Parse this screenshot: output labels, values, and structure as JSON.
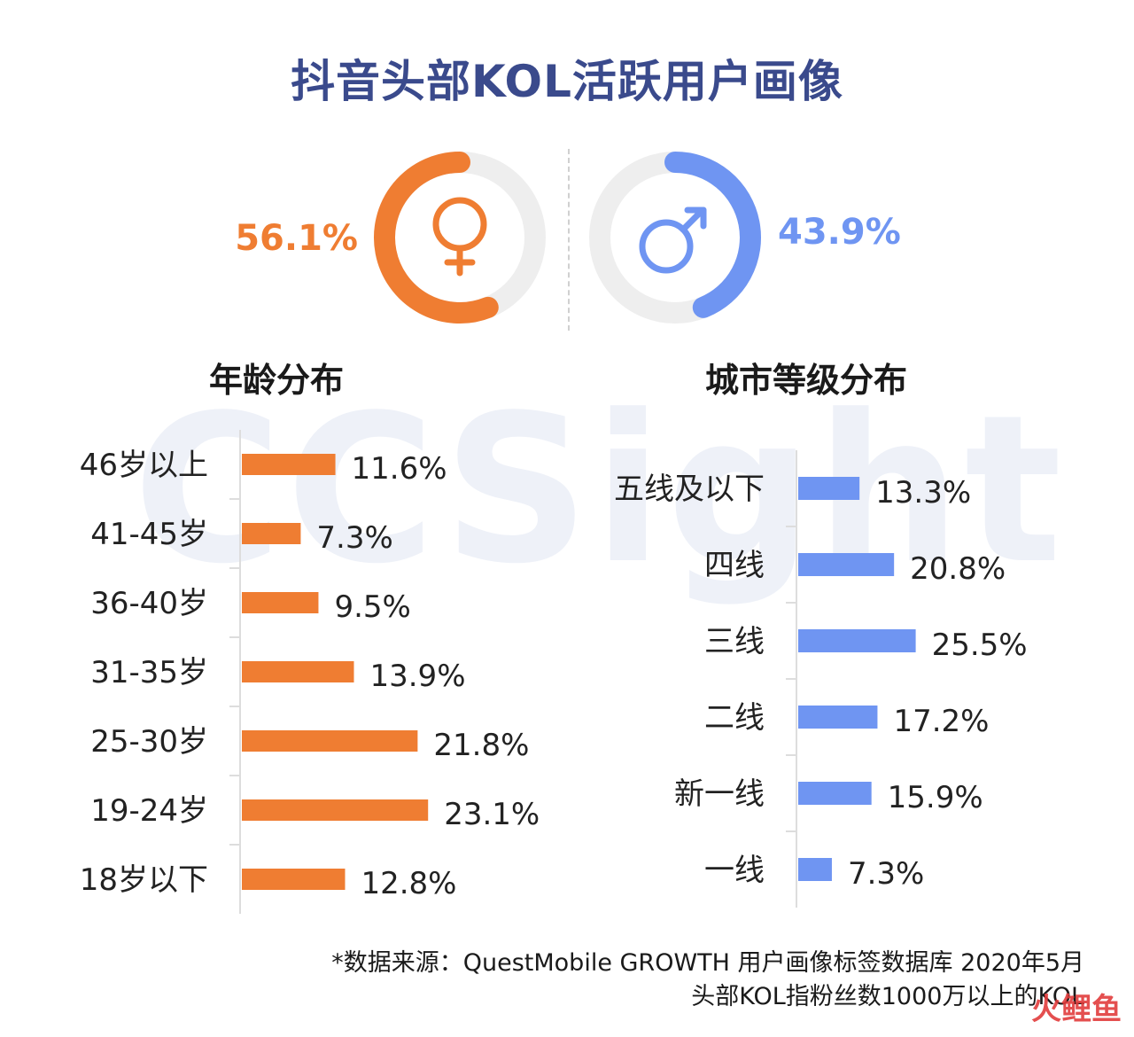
{
  "title": "抖音头部KOL活跃用户画像",
  "gender": {
    "female": {
      "percent": 56.1,
      "label": "56.1%",
      "color": "#ef7d32",
      "icon": "female-symbol-icon"
    },
    "male": {
      "percent": 43.9,
      "label": "43.9%",
      "color": "#6f95f2",
      "icon": "male-symbol-icon"
    },
    "track_color": "#eeeeee"
  },
  "watermark": "CCSight",
  "chart_data": [
    {
      "type": "bar",
      "orientation": "horizontal",
      "title": "年龄分布",
      "color": "#ef7d32",
      "categories": [
        "46岁以上",
        "41-45岁",
        "36-40岁",
        "31-35岁",
        "25-30岁",
        "19-24岁",
        "18岁以下"
      ],
      "values": [
        11.6,
        7.3,
        9.5,
        13.9,
        21.8,
        23.1,
        12.8
      ],
      "value_labels": [
        "11.6%",
        "7.3%",
        "9.5%",
        "13.9%",
        "21.8%",
        "23.1%",
        "12.8%"
      ],
      "unit": "%",
      "grid": false
    },
    {
      "type": "bar",
      "orientation": "horizontal",
      "title": "城市等级分布",
      "color": "#6f95f2",
      "categories": [
        "五线及以下",
        "四线",
        "三线",
        "二线",
        "新一线",
        "一线"
      ],
      "values": [
        13.3,
        20.8,
        25.5,
        17.2,
        15.9,
        7.3
      ],
      "value_labels": [
        "13.3%",
        "20.8%",
        "25.5%",
        "17.2%",
        "15.9%",
        "7.3%"
      ],
      "unit": "%",
      "grid": false
    }
  ],
  "source": {
    "line1": "*数据来源：QuestMobile GROWTH 用户画像标签数据库 2020年5月",
    "line2": "头部KOL指粉丝数1000万以上的KOL"
  },
  "logo": "火鲤鱼"
}
